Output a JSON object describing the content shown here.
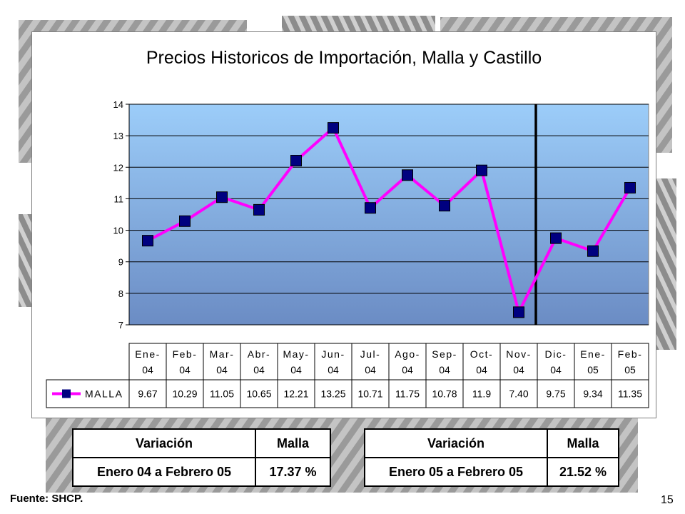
{
  "colors": {
    "series_line": "#ff00ff",
    "marker": "#000080",
    "plot_gradient_top": "#9ccdf9",
    "plot_gradient_bottom": "#6b8cc4",
    "vertical_marker_line": "#000000"
  },
  "chart_data": {
    "type": "line",
    "title": "Precios Historicos de Importación, Malla y Castillo",
    "categories": [
      [
        "Ene-",
        "04"
      ],
      [
        "Feb-",
        "04"
      ],
      [
        "Mar-",
        "04"
      ],
      [
        "Abr-",
        "04"
      ],
      [
        "May-",
        "04"
      ],
      [
        "Jun-",
        "04"
      ],
      [
        "Jul-",
        "04"
      ],
      [
        "Ago-",
        "04"
      ],
      [
        "Sep-",
        "04"
      ],
      [
        "Oct-",
        "04"
      ],
      [
        "Nov-",
        "04"
      ],
      [
        "Dic-",
        "04"
      ],
      [
        "Ene-",
        "05"
      ],
      [
        "Feb-",
        "05"
      ]
    ],
    "series": [
      {
        "name": "MALLA",
        "values": [
          9.67,
          10.29,
          11.05,
          10.65,
          12.21,
          13.25,
          10.71,
          11.75,
          10.78,
          11.9,
          7.4,
          9.75,
          9.34,
          11.35
        ],
        "labels": [
          "9.67",
          "10.29",
          "11.05",
          "10.65",
          "12.21",
          "13.25",
          "10.71",
          "11.75",
          "10.78",
          "11.9",
          "7.40",
          "9.75",
          "9.34",
          "11.35"
        ]
      }
    ],
    "ylim": [
      7,
      14
    ],
    "yticks": [
      7,
      8,
      9,
      10,
      11,
      12,
      13,
      14
    ],
    "grid": true,
    "data_table": true,
    "vertical_line_at_category": 11,
    "xlabel": "",
    "ylabel": ""
  },
  "tables": [
    {
      "header": [
        "Variación",
        "Malla"
      ],
      "row": [
        "Enero 04 a Febrero 05",
        "17.37 %"
      ]
    },
    {
      "header": [
        "Variación",
        "Malla"
      ],
      "row": [
        "Enero 05 a Febrero 05",
        "21.52 %"
      ]
    }
  ],
  "footer": {
    "source": "Fuente: SHCP.",
    "page_number": "15"
  }
}
